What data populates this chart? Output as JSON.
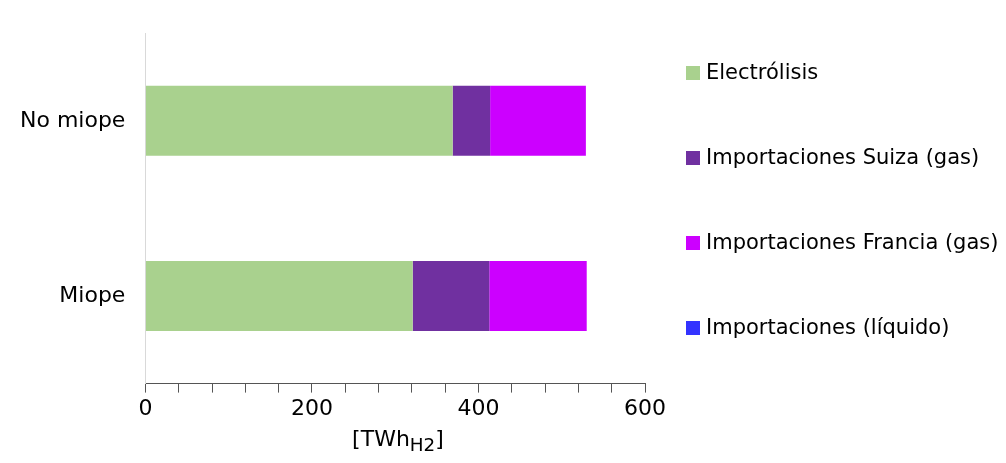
{
  "chart_data": {
    "type": "bar",
    "orientation": "horizontal",
    "stacked": true,
    "categories": [
      "No miope",
      "Miope"
    ],
    "series": [
      {
        "name": "Electrólisis",
        "color": "#a9d18e",
        "values": [
          369,
          321
        ]
      },
      {
        "name": "Importaciones Suiza (gas)",
        "color": "#7030a0",
        "values": [
          45,
          92
        ]
      },
      {
        "name": "Importaciones Francia (gas)",
        "color": "#cc00ff",
        "values": [
          115,
          117
        ]
      },
      {
        "name": "Importaciones (líquido)",
        "color": "#3333ff",
        "values": [
          0,
          0
        ]
      }
    ],
    "xlim": [
      0,
      600
    ],
    "xticks": [
      0,
      {
        "value": 40,
        "label": null
      },
      {
        "value": 80,
        "label": null
      },
      {
        "value": 120,
        "label": null
      },
      {
        "value": 160,
        "label": null
      },
      200,
      {
        "value": 240,
        "label": null
      },
      {
        "value": 280,
        "label": null
      },
      {
        "value": 320,
        "label": null
      },
      {
        "value": 360,
        "label": null
      },
      400,
      {
        "value": 440,
        "label": null
      },
      {
        "value": 480,
        "label": null
      },
      {
        "value": 520,
        "label": null
      },
      {
        "value": 560,
        "label": null
      },
      600
    ],
    "xlabel": "[TWh$_{H2}$]",
    "grid": false,
    "legend": "right"
  }
}
